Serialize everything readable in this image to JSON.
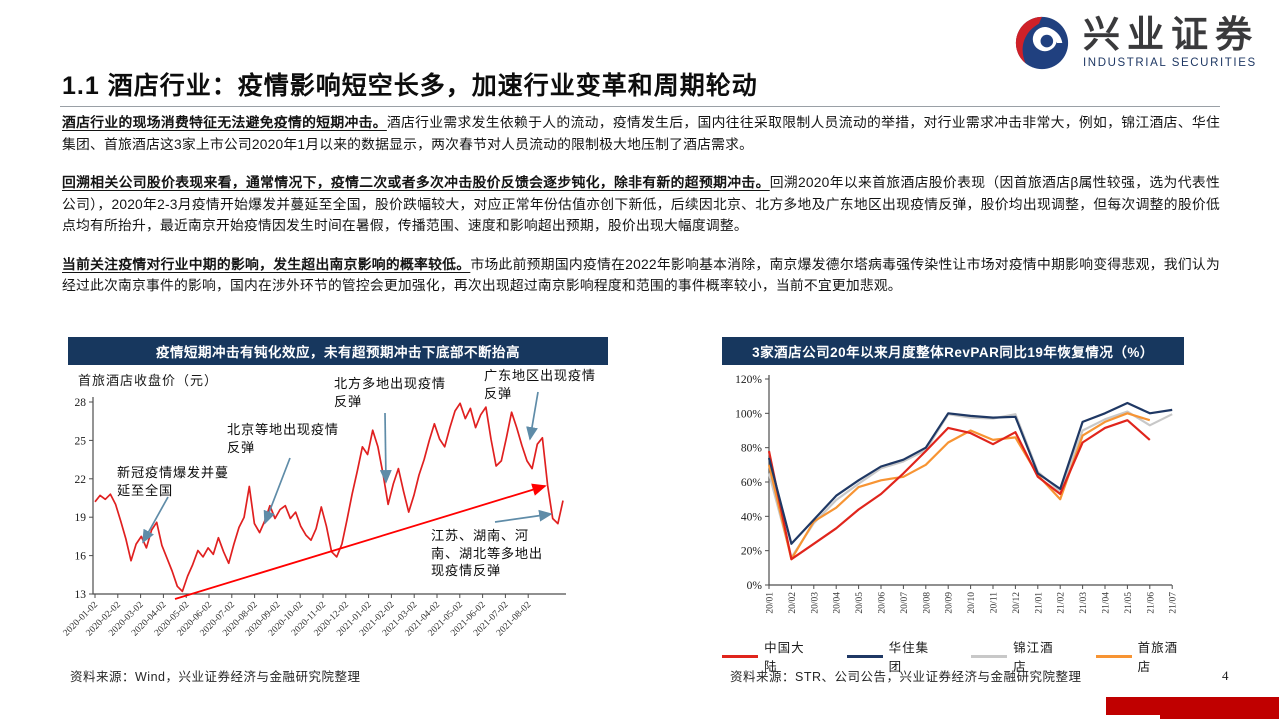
{
  "slide": {
    "brand": {
      "name_cn": "兴业证券",
      "name_en": "INDUSTRIAL SECURITIES"
    },
    "title": "1.1 酒店行业：疫情影响短空长多，加速行业变革和周期轮动",
    "paragraphs": [
      {
        "lead": "酒店行业的现场消费特征无法避免疫情的短期冲击。",
        "body": "酒店行业需求发生依赖于人的流动，疫情发生后，国内往往采取限制人员流动的举措，对行业需求冲击非常大，例如，锦江酒店、华住集团、首旅酒店这3家上市公司2020年1月以来的数据显示，两次春节对人员流动的限制极大地压制了酒店需求。"
      },
      {
        "lead": "回溯相关公司股价表现来看，通常情况下，疫情二次或者多次冲击股价反馈会逐步钝化，除非有新的超预期冲击。",
        "body": "回溯2020年以来首旅酒店股价表现（因首旅酒店β属性较强，选为代表性公司），2020年2-3月疫情开始爆发并蔓延至全国，股价跌幅较大，对应正常年份估值亦创下新低，后续因北京、北方多地及广东地区出现疫情反弹，股价均出现调整，但每次调整的股价低点均有所抬升，最近南京开始疫情因发生时间在暑假，传播范围、速度和影响超出预期，股价出现大幅度调整。"
      },
      {
        "lead": "当前关注疫情对行业中期的影响，发生超出南京影响的概率较低。",
        "body": "市场此前预期国内疫情在2022年影响基本消除，南京爆发德尔塔病毒强传染性让市场对疫情中期影响变得悲观，我们认为经过此次南京事件的影响，国内在涉外环节的管控会更加强化，再次出现超过南京影响程度和范围的事件概率较小，当前不宜更加悲观。"
      }
    ],
    "footnotes": {
      "left": "资料来源：Wind，兴业证券经济与金融研究院整理",
      "right": "资料来源：STR、公司公告，兴业证券经济与金融研究院整理"
    },
    "page_number": "4"
  },
  "colors": {
    "panel_navy": "#17375e",
    "price_red": "#e02020",
    "trend_arrow_red": "#ff0000",
    "annot_arrow_blue": "#5f8ca8",
    "corner_red": "#c00000"
  },
  "chart_data": [
    {
      "type": "line",
      "title": "疫情短期冲击有钝化效应，未有超预期冲击下底部不断抬高",
      "ylabel": "首旅酒店收盘价（元）",
      "ylim": [
        13,
        28
      ],
      "yticks": [
        13,
        16,
        19,
        22,
        25,
        28
      ],
      "grid": false,
      "x_tick_labels": [
        "2020-01-02",
        "2020-02-02",
        "2020-03-02",
        "2020-04-02",
        "2020-05-02",
        "2020-06-02",
        "2020-07-02",
        "2020-08-02",
        "2020-09-02",
        "2020-10-02",
        "2020-11-02",
        "2020-12-02",
        "2021-01-02",
        "2021-02-02",
        "2021-03-02",
        "2021-04-02",
        "2021-05-02",
        "2021-06-02",
        "2021-07-02",
        "2021-08-02"
      ],
      "series": [
        {
          "name": "首旅酒店收盘价",
          "color": "#e02020",
          "values": [
            20.2,
            20.7,
            20.4,
            20.8,
            20.0,
            18.7,
            17.3,
            15.6,
            16.9,
            17.5,
            16.6,
            18.0,
            18.6,
            16.8,
            15.8,
            14.8,
            13.6,
            13.2,
            14.4,
            15.3,
            16.4,
            15.9,
            16.6,
            16.1,
            17.4,
            16.3,
            15.4,
            16.9,
            18.2,
            19.0,
            21.4,
            18.5,
            17.8,
            18.7,
            19.9,
            18.9,
            19.6,
            19.9,
            18.9,
            19.4,
            18.3,
            17.6,
            17.2,
            18.1,
            19.8,
            18.3,
            16.3,
            15.9,
            16.9,
            18.8,
            20.8,
            22.6,
            24.5,
            23.9,
            25.8,
            24.5,
            22.4,
            20.0,
            21.6,
            22.8,
            21.0,
            19.4,
            20.7,
            22.3,
            23.5,
            25.0,
            26.3,
            25.1,
            24.5,
            26.0,
            27.3,
            27.9,
            26.7,
            27.5,
            26.0,
            27.0,
            27.6,
            25.1,
            23.0,
            23.4,
            25.2,
            27.2,
            26.0,
            24.6,
            23.4,
            22.8,
            24.7,
            25.2,
            21.5,
            18.9,
            18.5,
            20.3
          ]
        }
      ],
      "trend_arrow": {
        "meaning": "底部不断抬高",
        "from_value": 13.0,
        "to_value": 21.5,
        "color": "#ff0000"
      },
      "annotations": [
        {
          "text": "新冠疫情爆发并蔓延至全国"
        },
        {
          "text": "北京等地出现疫情反弹"
        },
        {
          "text": "北方多地出现疫情反弹"
        },
        {
          "text": "广东地区出现疫情反弹"
        },
        {
          "text": "江苏、湖南、河南、湖北等多地出现疫情反弹"
        }
      ]
    },
    {
      "type": "line",
      "title": "3家酒店公司20年以来月度整体RevPAR同比19年恢复情况（%）",
      "ylim": [
        0,
        120
      ],
      "ytick_labels": [
        "0%",
        "20%",
        "40%",
        "60%",
        "80%",
        "100%",
        "120%"
      ],
      "grid": false,
      "legend_position": "bottom",
      "categories": [
        "20/01",
        "20/02",
        "20/03",
        "20/04",
        "20/05",
        "20/06",
        "20/07",
        "20/08",
        "20/09",
        "20/10",
        "20/11",
        "20/12",
        "21/01",
        "21/02",
        "21/03",
        "21/04",
        "21/05",
        "21/06",
        "21/07"
      ],
      "series": [
        {
          "name": "中国大陆",
          "color": "#e0251c",
          "values": [
            78,
            15,
            24,
            33,
            44,
            53,
            65,
            78,
            91.5,
            88.5,
            82,
            89,
            63,
            53,
            83,
            91.5,
            96,
            84.5,
            null
          ]
        },
        {
          "name": "华住集团",
          "color": "#1f3864",
          "values": [
            74,
            24,
            38,
            52,
            61,
            69,
            73,
            80,
            100,
            98.5,
            97.5,
            98,
            65,
            56,
            95,
            100,
            106,
            100,
            102
          ]
        },
        {
          "name": "锦江酒店",
          "color": "#c8c8c8",
          "values": [
            65,
            16,
            36,
            49.5,
            59,
            68,
            72,
            78.5,
            99.5,
            97.5,
            97,
            99.5,
            66,
            54.5,
            90,
            96.5,
            101,
            93,
            99.5
          ]
        },
        {
          "name": "首旅酒店",
          "color": "#f79433",
          "values": [
            70,
            15,
            37,
            45,
            57,
            61,
            63,
            70,
            83,
            90,
            84.5,
            86,
            64,
            50,
            87,
            95,
            100,
            96,
            null
          ]
        }
      ]
    }
  ]
}
